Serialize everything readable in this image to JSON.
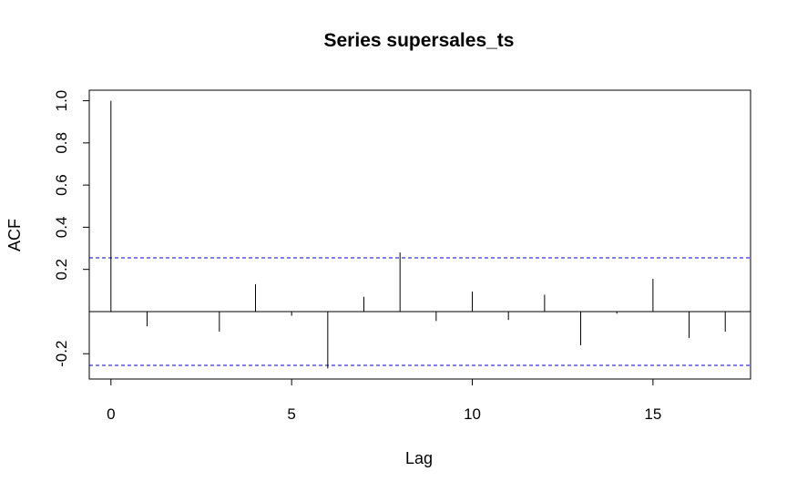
{
  "chart_data": {
    "type": "bar",
    "title": "Series  supersales_ts",
    "xlabel": "Lag",
    "ylabel": "ACF",
    "x": [
      0,
      1,
      2,
      3,
      4,
      5,
      6,
      7,
      8,
      9,
      10,
      11,
      12,
      13,
      14,
      15,
      16,
      17
    ],
    "values": [
      1.0,
      -0.07,
      0.0,
      -0.095,
      0.13,
      -0.02,
      -0.27,
      0.07,
      0.28,
      -0.045,
      0.095,
      -0.04,
      0.08,
      -0.16,
      -0.01,
      0.155,
      -0.125,
      -0.095
    ],
    "x_ticks": [
      0,
      5,
      10,
      15
    ],
    "x_tick_labels": [
      "0",
      "5",
      "10",
      "15"
    ],
    "y_ticks": [
      -0.2,
      0.2,
      0.4,
      0.6,
      0.8,
      1.0
    ],
    "y_tick_labels": [
      "-0.2",
      "0.2",
      "0.4",
      "0.6",
      "0.8",
      "1.0"
    ],
    "xlim": [
      -0.6,
      17.7
    ],
    "ylim": [
      -0.32,
      1.05
    ],
    "confidence_bound": 0.255,
    "zero_line": 0,
    "grid": false,
    "colors": {
      "bars": "#000000",
      "confidence_lines": "#0000cc",
      "axes": "#000000"
    }
  }
}
